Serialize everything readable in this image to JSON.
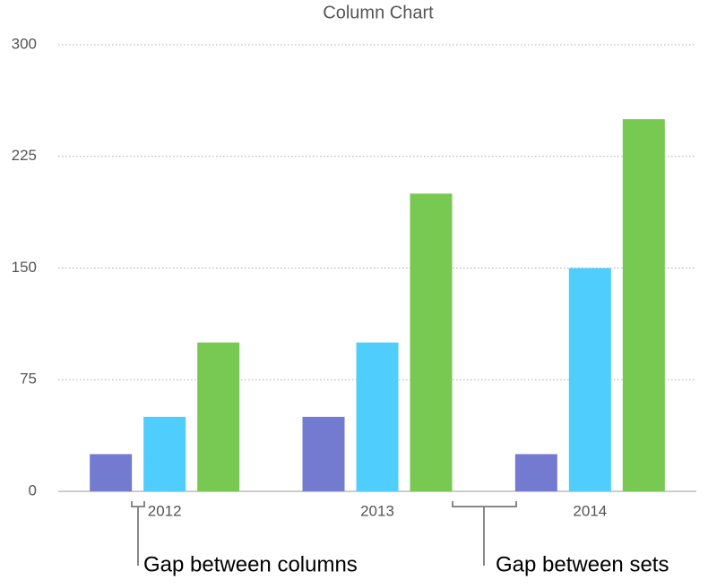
{
  "chart_data": {
    "type": "bar",
    "title": "Column Chart",
    "categories": [
      "2012",
      "2013",
      "2014"
    ],
    "series": [
      {
        "color": "#737bd0",
        "values": [
          25,
          50,
          25
        ]
      },
      {
        "color": "#4fcdfd",
        "values": [
          50,
          100,
          150
        ]
      },
      {
        "color": "#78c951",
        "values": [
          100,
          200,
          250
        ]
      }
    ],
    "ylim": [
      0,
      300
    ],
    "yticks": [
      0,
      75,
      150,
      225,
      300
    ],
    "grid": true,
    "annotations": [
      "Gap between columns",
      "Gap between sets"
    ]
  }
}
